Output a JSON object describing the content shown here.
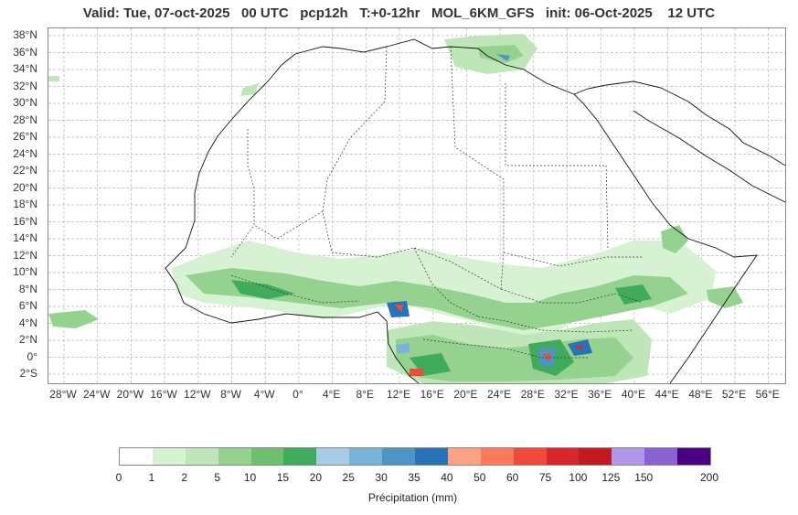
{
  "title": "Valid: Tue, 07-oct-2025   00 UTC   pcp12h   T:+0-12hr   MOL_6KM_GFS   init: 06-Oct-2025    12 UTC",
  "lat_labels": [
    "38°N",
    "36°N",
    "34°N",
    "32°N",
    "30°N",
    "28°N",
    "26°N",
    "24°N",
    "22°N",
    "20°N",
    "18°N",
    "16°N",
    "14°N",
    "12°N",
    "10°N",
    "8°N",
    "6°N",
    "4°N",
    "2°N",
    "0°",
    "2°S"
  ],
  "lon_labels": [
    "28°W",
    "24°W",
    "20°W",
    "16°W",
    "12°W",
    "8°W",
    "4°W",
    "0°",
    "4°E",
    "8°E",
    "12°E",
    "16°E",
    "20°E",
    "24°E",
    "28°E",
    "32°E",
    "36°E",
    "40°E",
    "44°E",
    "48°E",
    "52°E",
    "56°E"
  ],
  "colorbar": {
    "ticks": [
      "0",
      "1",
      "2",
      "5",
      "10",
      "15",
      "20",
      "25",
      "30",
      "35",
      "40",
      "50",
      "60",
      "75",
      "100",
      "125",
      "150",
      "200"
    ],
    "colors": [
      "#ffffff",
      "#d6f2d2",
      "#bfe6b8",
      "#96d28f",
      "#6ebf6e",
      "#41ab5d",
      "#a6cde3",
      "#78b4d8",
      "#4f94c6",
      "#2a72b6",
      "#fca285",
      "#fb7a5c",
      "#ef4a3b",
      "#d8262a",
      "#c11b1f",
      "#b197ea",
      "#8a63d2",
      "#4b0082"
    ],
    "label": "Précipitation (mm)"
  }
}
